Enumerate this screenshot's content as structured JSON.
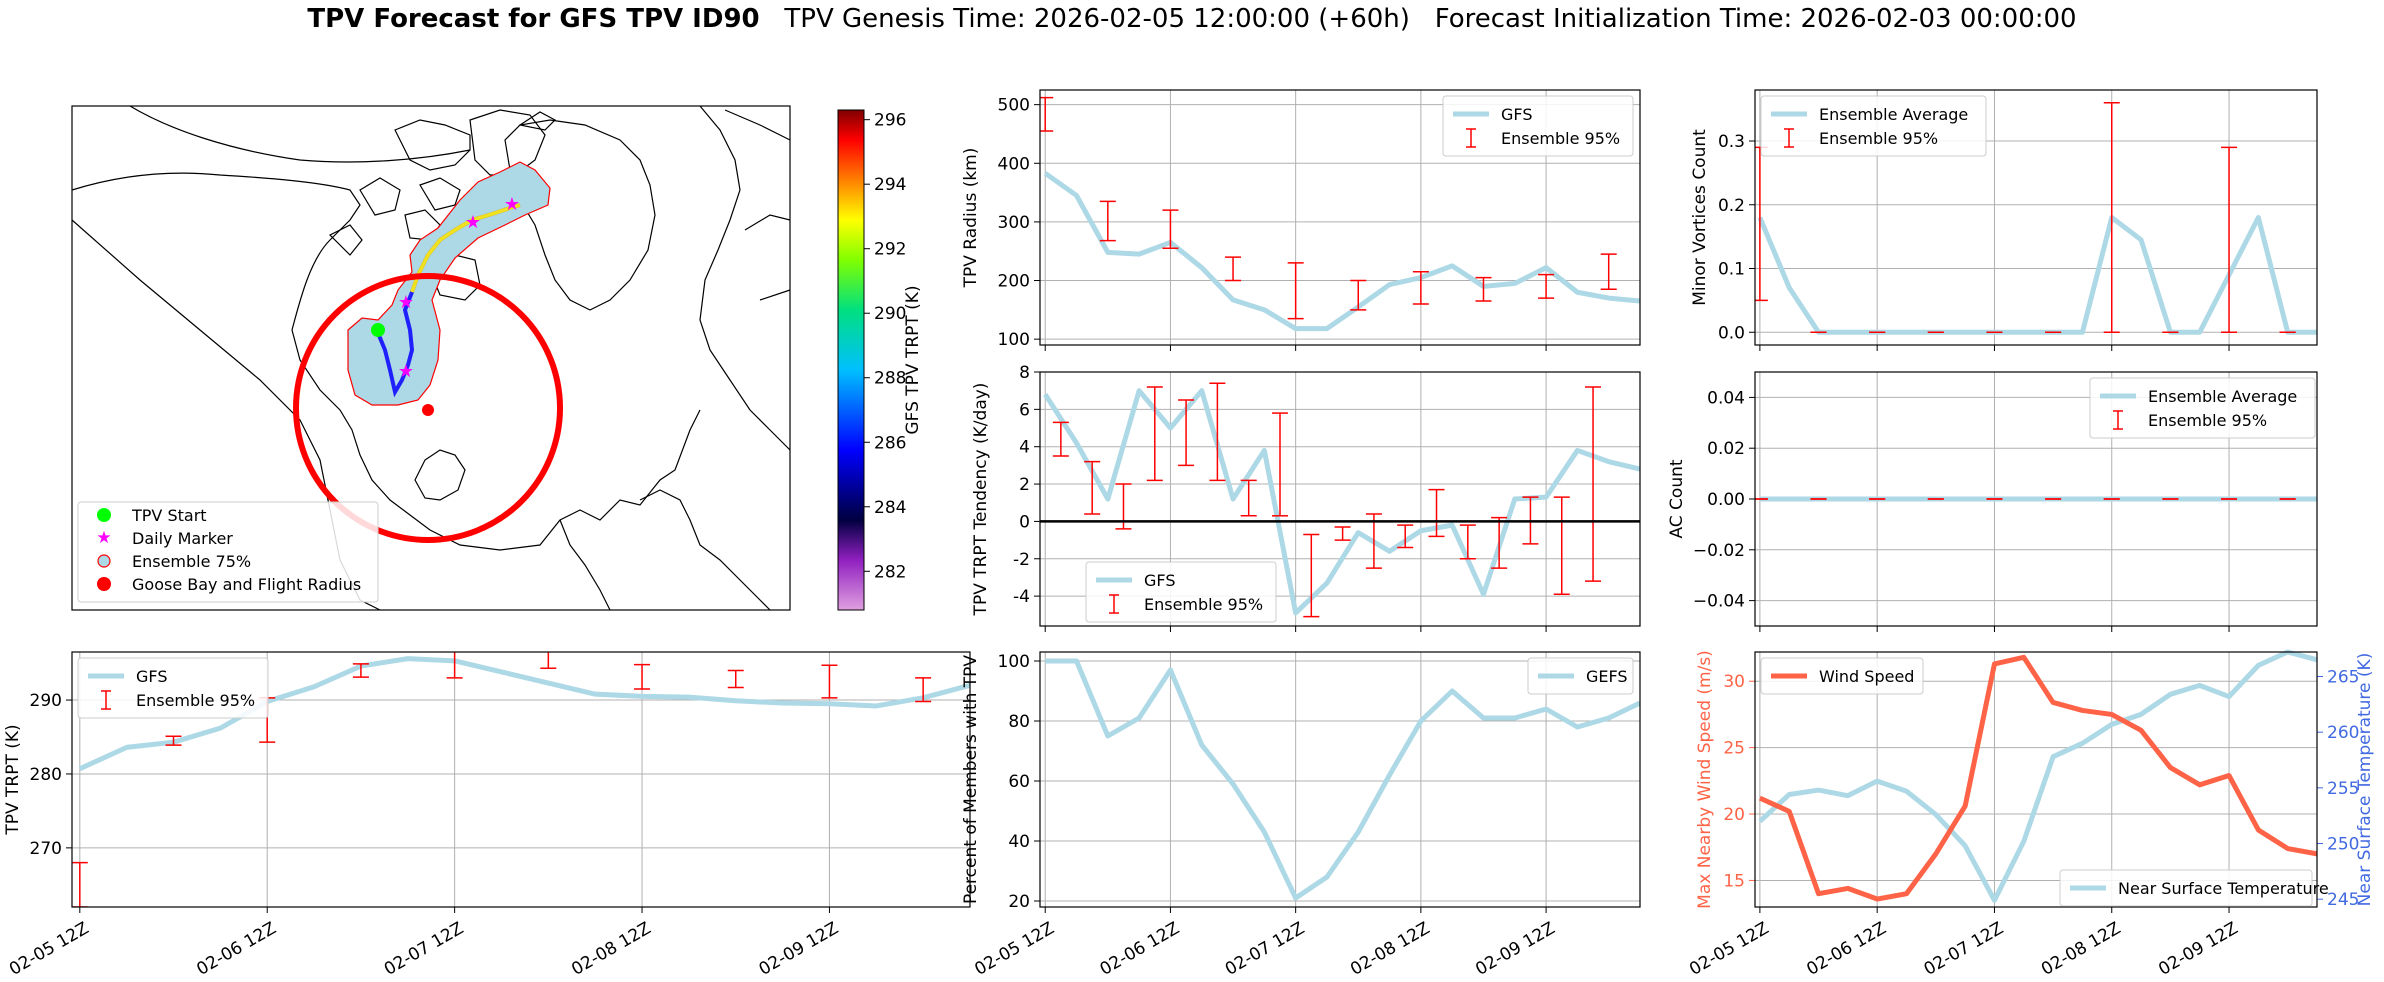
{
  "figure": {
    "title_bold": "TPV Forecast for GFS TPV ID90",
    "title_rest": "TPV Genesis Time: 2026-02-05 12:00:00 (+60h)   Forecast Initialization Time: 2026-02-03 00:00:00"
  },
  "colors": {
    "gfs_line": "#add8e6",
    "ensemble_err": "#ff0000",
    "wind_line": "#ff6347",
    "temp_axis": "#4169e1",
    "ens75_fill": "#add8e6",
    "tpv_start": "#00ff00",
    "daily_marker": "#ff00ff",
    "goose_bay": "#ff0000"
  },
  "chart_data": [
    {
      "id": "map",
      "type": "scatter",
      "title": "",
      "colorbar_label": "GFS TPV TRPT (K)",
      "colorbar_ticks": [
        "282",
        "284",
        "286",
        "288",
        "290",
        "292",
        "294",
        "296"
      ],
      "colorbar_range": [
        280.8,
        296.3
      ],
      "legend_location": "lower-left",
      "legend": [
        "TPV Start",
        "Daily Marker",
        "Ensemble 75%",
        "Goose Bay and Flight Radius"
      ]
    },
    {
      "id": "radius",
      "type": "line",
      "ylabel": "TPV Radius (km)",
      "yticks": [
        100,
        200,
        300,
        400,
        500
      ],
      "ylim": [
        90,
        525
      ],
      "legend_location": "upper-right",
      "series": [
        {
          "name": "GFS",
          "x": [
            0,
            6,
            12,
            18,
            24,
            30,
            36,
            42,
            48,
            54,
            60,
            66,
            72,
            78,
            84,
            90,
            96,
            102,
            108,
            114
          ],
          "values": [
            383,
            345,
            248,
            245,
            265,
            222,
            167,
            150,
            118,
            118,
            155,
            193,
            205,
            225,
            190,
            195,
            222,
            180,
            170,
            165
          ]
        },
        {
          "name": "Ensemble 95%",
          "x": [
            0,
            12,
            24,
            36,
            48,
            60,
            72,
            84,
            96,
            108
          ],
          "low": [
            455,
            268,
            255,
            200,
            135,
            150,
            160,
            165,
            170,
            185
          ],
          "high": [
            512,
            335,
            320,
            240,
            230,
            200,
            215,
            205,
            210,
            245
          ]
        }
      ]
    },
    {
      "id": "minor_vortices",
      "type": "line",
      "ylabel": "Minor Vortices Count",
      "yticks": [
        "0.0",
        "0.1",
        "0.2",
        "0.3"
      ],
      "ylim": [
        -0.02,
        0.38
      ],
      "legend_location": "upper-left",
      "series": [
        {
          "name": "Ensemble Average",
          "x": [
            0,
            6,
            12,
            18,
            24,
            30,
            36,
            42,
            48,
            54,
            60,
            66,
            72,
            78,
            84,
            90,
            96,
            102,
            108,
            114
          ],
          "values": [
            0.18,
            0.07,
            0,
            0,
            0,
            0,
            0,
            0,
            0,
            0,
            0,
            0,
            0.18,
            0.145,
            0,
            0,
            0.09,
            0.18,
            0,
            0
          ]
        },
        {
          "name": "Ensemble 95%",
          "x": [
            0,
            12,
            24,
            36,
            48,
            60,
            72,
            84,
            96,
            108
          ],
          "low": [
            0.05,
            0,
            0,
            0,
            0,
            0,
            0,
            0,
            0,
            0
          ],
          "high": [
            0.29,
            0,
            0,
            0,
            0,
            0,
            0.36,
            0,
            0.29,
            0
          ]
        }
      ]
    },
    {
      "id": "trpt_tendency",
      "type": "line",
      "ylabel": "TPV TRPT Tendency (K/day)",
      "yticks": [
        -4,
        -2,
        0,
        2,
        4,
        6,
        8
      ],
      "ylim": [
        -5.6,
        8.0
      ],
      "legend_location": "lower-left",
      "series": [
        {
          "name": "GFS",
          "x": [
            0,
            6,
            12,
            18,
            24,
            30,
            36,
            42,
            48,
            54,
            60,
            66,
            72,
            78,
            84,
            90,
            96,
            102,
            108,
            114
          ],
          "values": [
            6.8,
            4.2,
            1.2,
            7.0,
            5.0,
            7.0,
            1.2,
            3.8,
            -4.9,
            -3.3,
            -0.6,
            -1.6,
            -0.5,
            -0.2,
            -3.9,
            1.2,
            1.3,
            3.8,
            3.2,
            2.8
          ]
        },
        {
          "name": "Ensemble 95%",
          "x": [
            3,
            9,
            15,
            21,
            27,
            33,
            39,
            45,
            51,
            57,
            63,
            69,
            75,
            81,
            87,
            93,
            99,
            105
          ],
          "low": [
            3.5,
            0.4,
            -0.4,
            2.2,
            3.0,
            2.2,
            0.3,
            0.3,
            -5.1,
            -1.0,
            -2.5,
            -1.4,
            -0.8,
            -2.0,
            -2.5,
            -1.2,
            -3.9,
            -3.2
          ],
          "high": [
            5.3,
            3.2,
            2.0,
            7.2,
            6.5,
            7.4,
            2.2,
            5.8,
            -0.7,
            -0.3,
            0.4,
            -0.2,
            1.7,
            -0.2,
            0.2,
            1.3,
            1.3,
            7.2
          ]
        },
        {
          "name": "",
          "x": [
            0,
            114
          ],
          "values": [
            0,
            0
          ]
        }
      ]
    },
    {
      "id": "ac_count",
      "type": "line",
      "ylabel": "AC Count",
      "yticks": [
        "−0.04",
        "−0.02",
        "0.00",
        "0.02",
        "0.04"
      ],
      "ylim": [
        -0.05,
        0.05
      ],
      "legend_location": "upper-right",
      "series": [
        {
          "name": "Ensemble Average",
          "x": [
            0,
            114
          ],
          "values": [
            0,
            0
          ]
        },
        {
          "name": "Ensemble 95%",
          "x": [
            0,
            12,
            24,
            36,
            48,
            60,
            72,
            84,
            96,
            108
          ],
          "low": [
            0,
            0,
            0,
            0,
            0,
            0,
            0,
            0,
            0,
            0
          ],
          "high": [
            0,
            0,
            0,
            0,
            0,
            0,
            0,
            0,
            0,
            0
          ]
        }
      ]
    },
    {
      "id": "trpt",
      "type": "line",
      "ylabel": "TPV TRPT (K)",
      "yticks": [
        270,
        280,
        290
      ],
      "ylim": [
        262,
        296.5
      ],
      "legend_location": "upper-left",
      "xticks": [
        "02-05 12Z",
        "02-06 12Z",
        "02-07 12Z",
        "02-08 12Z",
        "02-09 12Z"
      ],
      "series": [
        {
          "name": "GFS",
          "x": [
            0,
            6,
            12,
            18,
            24,
            30,
            36,
            42,
            48,
            54,
            60,
            66,
            72,
            78,
            84,
            90,
            96,
            102,
            108,
            114
          ],
          "values": [
            280.7,
            283.6,
            284.3,
            286.2,
            289.8,
            291.8,
            294.6,
            295.6,
            295.3,
            293.8,
            292.3,
            290.8,
            290.5,
            290.4,
            289.9,
            289.6,
            289.5,
            289.2,
            290.3,
            292.0
          ]
        },
        {
          "name": "Ensemble 95%",
          "x": [
            0,
            12,
            24,
            36,
            48,
            60,
            72,
            84,
            96,
            108
          ],
          "low": [
            262,
            283.9,
            284.3,
            293.1,
            293.0,
            294.3,
            291.5,
            291.7,
            290.3,
            289.8
          ],
          "high": [
            268,
            285.1,
            290.3,
            294.9,
            297.3,
            296.8,
            294.8,
            294.0,
            294.7,
            293.0
          ]
        }
      ]
    },
    {
      "id": "percent_members",
      "type": "line",
      "ylabel": "Percent of Members with TPV",
      "yticks": [
        20,
        40,
        60,
        80,
        100
      ],
      "ylim": [
        18,
        103
      ],
      "legend_location": "upper-right",
      "xticks": [
        "02-05 12Z",
        "02-06 12Z",
        "02-07 12Z",
        "02-08 12Z",
        "02-09 12Z"
      ],
      "series": [
        {
          "name": "GEFS",
          "x": [
            0,
            6,
            12,
            18,
            24,
            30,
            36,
            42,
            48,
            54,
            60,
            66,
            72,
            78,
            84,
            90,
            96,
            102,
            108,
            114
          ],
          "values": [
            100,
            100,
            75,
            81,
            97,
            72,
            59,
            43,
            21,
            28,
            43,
            62,
            80,
            90,
            81,
            81,
            84,
            78,
            81,
            86
          ]
        }
      ]
    },
    {
      "id": "wind_temp",
      "type": "line",
      "ylabel": "Max Nearby Wind Speed (m/s)",
      "y2label": "Near Surface Temperature (K)",
      "yticks": [
        15,
        20,
        25,
        30
      ],
      "ylim": [
        13,
        32.2
      ],
      "y2ticks": [
        245,
        250,
        255,
        260,
        265
      ],
      "y2lim": [
        244.3,
        267.2
      ],
      "xticks": [
        "02-05 12Z",
        "02-06 12Z",
        "02-07 12Z",
        "02-08 12Z",
        "02-09 12Z"
      ],
      "series": [
        {
          "name": "Wind Speed",
          "axis": "left",
          "legend_location": "upper-left",
          "x": [
            0,
            6,
            12,
            18,
            24,
            30,
            36,
            42,
            48,
            54,
            60,
            66,
            72,
            78,
            84,
            90,
            96,
            102,
            108,
            114
          ],
          "values": [
            21.2,
            20.2,
            14.0,
            14.4,
            13.6,
            14.0,
            17.0,
            20.6,
            31.3,
            31.8,
            28.4,
            27.8,
            27.5,
            26.3,
            23.5,
            22.2,
            22.9,
            18.8,
            17.4,
            17.0
          ]
        },
        {
          "name": "Near Surface Temperature",
          "axis": "right",
          "legend_location": "lower-right",
          "x": [
            0,
            6,
            12,
            18,
            24,
            30,
            36,
            42,
            48,
            54,
            60,
            66,
            72,
            78,
            84,
            90,
            96,
            102,
            108,
            114
          ],
          "values": [
            252.0,
            254.4,
            254.8,
            254.3,
            255.6,
            254.7,
            252.6,
            249.8,
            244.9,
            250.2,
            257.8,
            259.0,
            260.7,
            261.6,
            263.4,
            264.2,
            263.2,
            266.0,
            267.2,
            266.5
          ]
        }
      ]
    }
  ]
}
